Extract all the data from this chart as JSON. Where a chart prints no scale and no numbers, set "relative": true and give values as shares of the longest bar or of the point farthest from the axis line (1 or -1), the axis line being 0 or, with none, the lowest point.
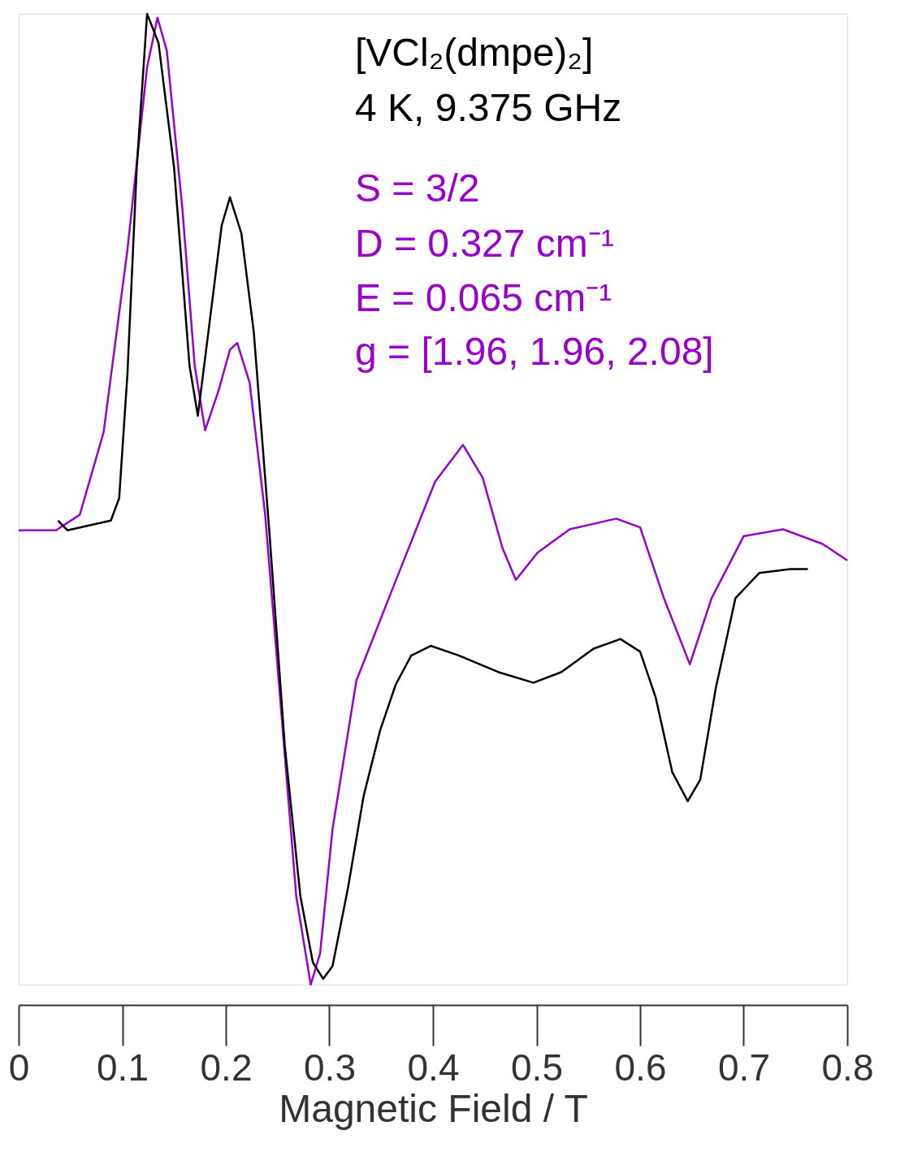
{
  "chart_data": {
    "type": "line",
    "relative": true,
    "xlabel": "Magnetic Field / T",
    "xlim": [
      0,
      0.8
    ],
    "xticks": [
      0,
      0.1,
      0.2,
      0.3,
      0.4,
      0.5,
      0.6,
      0.7,
      0.8
    ],
    "grid": false,
    "legend": false,
    "tick_labels": "x",
    "line_style": "solid",
    "marker": "none",
    "annotations": [
      "[VCl₂(dmpe)₂]",
      "4 K, 9.375  GHz",
      "S = 3/2",
      "D = 0.327 cm⁻¹",
      "E = 0.065 cm⁻¹",
      "g = [1.96, 1.96, 2.08]"
    ],
    "series": [
      {
        "color": "#9900cc",
        "x": [
          0.0,
          0.036,
          0.059,
          0.082,
          0.105,
          0.124,
          0.134,
          0.143,
          0.158,
          0.17,
          0.18,
          0.193,
          0.204,
          0.211,
          0.223,
          0.238,
          0.253,
          0.268,
          0.282,
          0.291,
          0.303,
          0.326,
          0.364,
          0.402,
          0.429,
          0.448,
          0.467,
          0.48,
          0.501,
          0.532,
          0.577,
          0.6,
          0.623,
          0.648,
          0.669,
          0.7,
          0.738,
          0.776,
          0.8
        ],
        "values": [
          0.468,
          0.468,
          0.484,
          0.569,
          0.757,
          0.945,
          0.996,
          0.962,
          0.8,
          0.637,
          0.571,
          0.612,
          0.654,
          0.661,
          0.62,
          0.484,
          0.288,
          0.091,
          0.0,
          0.032,
          0.16,
          0.313,
          0.416,
          0.518,
          0.556,
          0.522,
          0.45,
          0.417,
          0.445,
          0.469,
          0.48,
          0.471,
          0.398,
          0.33,
          0.398,
          0.462,
          0.469,
          0.454,
          0.437
        ]
      },
      {
        "color": "#000000",
        "x": [
          0.038,
          0.047,
          0.089,
          0.097,
          0.105,
          0.114,
          0.124,
          0.135,
          0.15,
          0.165,
          0.173,
          0.185,
          0.196,
          0.204,
          0.215,
          0.227,
          0.242,
          0.257,
          0.272,
          0.284,
          0.294,
          0.303,
          0.318,
          0.333,
          0.349,
          0.364,
          0.379,
          0.398,
          0.425,
          0.463,
          0.497,
          0.524,
          0.555,
          0.581,
          0.6,
          0.615,
          0.631,
          0.646,
          0.658,
          0.673,
          0.692,
          0.715,
          0.745,
          0.762
        ],
        "values": [
          0.478,
          0.468,
          0.478,
          0.501,
          0.629,
          0.842,
          1.0,
          0.97,
          0.842,
          0.637,
          0.586,
          0.688,
          0.782,
          0.811,
          0.774,
          0.672,
          0.467,
          0.245,
          0.091,
          0.023,
          0.006,
          0.019,
          0.1,
          0.194,
          0.262,
          0.309,
          0.339,
          0.349,
          0.339,
          0.322,
          0.311,
          0.322,
          0.346,
          0.356,
          0.343,
          0.296,
          0.219,
          0.189,
          0.211,
          0.305,
          0.398,
          0.424,
          0.428,
          0.428
        ]
      }
    ]
  }
}
